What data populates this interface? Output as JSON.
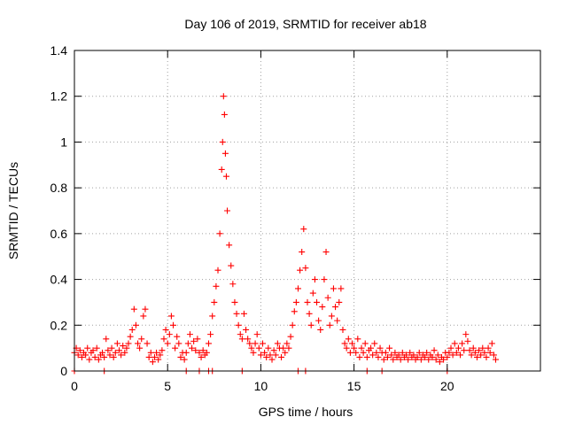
{
  "chart_data": {
    "type": "scatter",
    "title": "Day 106 of 2019, SRMTID for receiver ab18",
    "xlabel": "GPS time / hours",
    "ylabel": "SRMTID / TECUs",
    "xlim": [
      0,
      25
    ],
    "ylim": [
      0,
      1.4
    ],
    "xticks": [
      "0",
      "5",
      "10",
      "15",
      "20"
    ],
    "yticks": [
      "0",
      "0.2",
      "0.4",
      "0.6",
      "0.8",
      "1",
      "1.2",
      "1.4"
    ],
    "grid": true,
    "marker": "+",
    "colors": {
      "series": "#ff0000",
      "grid": "#a0a0a0",
      "axis": "#000000"
    },
    "series": [
      {
        "name": "SRMTID",
        "points": [
          [
            0.0,
            0.08
          ],
          [
            0.1,
            0.1
          ],
          [
            0.2,
            0.07
          ],
          [
            0.3,
            0.09
          ],
          [
            0.4,
            0.06
          ],
          [
            0.5,
            0.08
          ],
          [
            0.6,
            0.07
          ],
          [
            0.7,
            0.1
          ],
          [
            0.8,
            0.05
          ],
          [
            0.9,
            0.08
          ],
          [
            1.0,
            0.09
          ],
          [
            1.1,
            0.06
          ],
          [
            1.2,
            0.1
          ],
          [
            1.3,
            0.05
          ],
          [
            1.4,
            0.07
          ],
          [
            1.5,
            0.08
          ],
          [
            1.6,
            0.06
          ],
          [
            1.7,
            0.14
          ],
          [
            1.8,
            0.09
          ],
          [
            1.9,
            0.07
          ],
          [
            2.0,
            0.1
          ],
          [
            2.1,
            0.06
          ],
          [
            2.2,
            0.08
          ],
          [
            2.3,
            0.12
          ],
          [
            2.4,
            0.09
          ],
          [
            2.5,
            0.07
          ],
          [
            2.6,
            0.11
          ],
          [
            2.7,
            0.08
          ],
          [
            2.8,
            0.1
          ],
          [
            2.9,
            0.12
          ],
          [
            3.0,
            0.15
          ],
          [
            3.1,
            0.18
          ],
          [
            3.2,
            0.27
          ],
          [
            3.3,
            0.2
          ],
          [
            3.4,
            0.12
          ],
          [
            3.5,
            0.1
          ],
          [
            3.6,
            0.14
          ],
          [
            3.7,
            0.24
          ],
          [
            3.8,
            0.27
          ],
          [
            3.9,
            0.12
          ],
          [
            4.0,
            0.06
          ],
          [
            4.1,
            0.08
          ],
          [
            4.2,
            0.04
          ],
          [
            4.3,
            0.06
          ],
          [
            4.4,
            0.08
          ],
          [
            4.5,
            0.05
          ],
          [
            4.6,
            0.07
          ],
          [
            4.7,
            0.09
          ],
          [
            4.8,
            0.14
          ],
          [
            4.9,
            0.18
          ],
          [
            5.0,
            0.12
          ],
          [
            5.1,
            0.16
          ],
          [
            5.2,
            0.24
          ],
          [
            5.3,
            0.2
          ],
          [
            5.4,
            0.1
          ],
          [
            5.5,
            0.15
          ],
          [
            5.6,
            0.12
          ],
          [
            5.7,
            0.06
          ],
          [
            5.8,
            0.08
          ],
          [
            5.9,
            0.05
          ],
          [
            6.0,
            0.08
          ],
          [
            6.1,
            0.12
          ],
          [
            6.2,
            0.16
          ],
          [
            6.3,
            0.1
          ],
          [
            6.4,
            0.13
          ],
          [
            6.5,
            0.09
          ],
          [
            6.6,
            0.14
          ],
          [
            6.7,
            0.08
          ],
          [
            6.8,
            0.06
          ],
          [
            6.9,
            0.09
          ],
          [
            7.0,
            0.07
          ],
          [
            7.1,
            0.08
          ],
          [
            7.2,
            0.12
          ],
          [
            7.3,
            0.16
          ],
          [
            7.4,
            0.24
          ],
          [
            7.5,
            0.3
          ],
          [
            7.6,
            0.37
          ],
          [
            7.7,
            0.44
          ],
          [
            7.8,
            0.6
          ],
          [
            7.9,
            0.88
          ],
          [
            7.95,
            1.0
          ],
          [
            8.0,
            1.2
          ],
          [
            8.05,
            1.12
          ],
          [
            8.1,
            0.95
          ],
          [
            8.15,
            0.85
          ],
          [
            8.2,
            0.7
          ],
          [
            8.3,
            0.55
          ],
          [
            8.4,
            0.46
          ],
          [
            8.5,
            0.38
          ],
          [
            8.6,
            0.3
          ],
          [
            8.7,
            0.25
          ],
          [
            8.8,
            0.2
          ],
          [
            8.9,
            0.16
          ],
          [
            9.0,
            0.14
          ],
          [
            9.1,
            0.25
          ],
          [
            9.2,
            0.18
          ],
          [
            9.3,
            0.14
          ],
          [
            9.4,
            0.12
          ],
          [
            9.5,
            0.1
          ],
          [
            9.6,
            0.08
          ],
          [
            9.7,
            0.12
          ],
          [
            9.8,
            0.16
          ],
          [
            9.9,
            0.1
          ],
          [
            10.0,
            0.07
          ],
          [
            10.1,
            0.12
          ],
          [
            10.2,
            0.08
          ],
          [
            10.3,
            0.06
          ],
          [
            10.4,
            0.1
          ],
          [
            10.5,
            0.07
          ],
          [
            10.6,
            0.05
          ],
          [
            10.7,
            0.09
          ],
          [
            10.8,
            0.07
          ],
          [
            10.9,
            0.12
          ],
          [
            11.0,
            0.1
          ],
          [
            11.1,
            0.06
          ],
          [
            11.2,
            0.1
          ],
          [
            11.3,
            0.08
          ],
          [
            11.4,
            0.12
          ],
          [
            11.5,
            0.1
          ],
          [
            11.6,
            0.15
          ],
          [
            11.7,
            0.2
          ],
          [
            11.8,
            0.26
          ],
          [
            11.9,
            0.3
          ],
          [
            12.0,
            0.36
          ],
          [
            12.1,
            0.44
          ],
          [
            12.2,
            0.52
          ],
          [
            12.3,
            0.62
          ],
          [
            12.4,
            0.45
          ],
          [
            12.5,
            0.3
          ],
          [
            12.6,
            0.25
          ],
          [
            12.7,
            0.2
          ],
          [
            12.8,
            0.34
          ],
          [
            12.9,
            0.4
          ],
          [
            13.0,
            0.3
          ],
          [
            13.1,
            0.22
          ],
          [
            13.2,
            0.18
          ],
          [
            13.3,
            0.28
          ],
          [
            13.4,
            0.4
          ],
          [
            13.5,
            0.52
          ],
          [
            13.6,
            0.32
          ],
          [
            13.7,
            0.2
          ],
          [
            13.8,
            0.24
          ],
          [
            13.9,
            0.36
          ],
          [
            14.0,
            0.28
          ],
          [
            14.1,
            0.22
          ],
          [
            14.2,
            0.3
          ],
          [
            14.3,
            0.36
          ],
          [
            14.4,
            0.18
          ],
          [
            14.5,
            0.12
          ],
          [
            14.6,
            0.1
          ],
          [
            14.7,
            0.14
          ],
          [
            14.8,
            0.08
          ],
          [
            14.9,
            0.12
          ],
          [
            15.0,
            0.1
          ],
          [
            15.1,
            0.08
          ],
          [
            15.2,
            0.14
          ],
          [
            15.3,
            0.06
          ],
          [
            15.4,
            0.1
          ],
          [
            15.5,
            0.08
          ],
          [
            15.6,
            0.12
          ],
          [
            15.7,
            0.06
          ],
          [
            15.8,
            0.09
          ],
          [
            15.9,
            0.1
          ],
          [
            16.0,
            0.07
          ],
          [
            16.1,
            0.12
          ],
          [
            16.2,
            0.08
          ],
          [
            16.3,
            0.06
          ],
          [
            16.4,
            0.1
          ],
          [
            16.5,
            0.08
          ],
          [
            16.6,
            0.05
          ],
          [
            16.7,
            0.08
          ],
          [
            16.8,
            0.06
          ],
          [
            16.9,
            0.1
          ],
          [
            17.0,
            0.07
          ],
          [
            17.1,
            0.05
          ],
          [
            17.2,
            0.08
          ],
          [
            17.3,
            0.06
          ],
          [
            17.4,
            0.07
          ],
          [
            17.5,
            0.05
          ],
          [
            17.6,
            0.08
          ],
          [
            17.7,
            0.06
          ],
          [
            17.8,
            0.07
          ],
          [
            17.9,
            0.05
          ],
          [
            18.0,
            0.08
          ],
          [
            18.1,
            0.06
          ],
          [
            18.2,
            0.07
          ],
          [
            18.3,
            0.05
          ],
          [
            18.4,
            0.06
          ],
          [
            18.5,
            0.08
          ],
          [
            18.6,
            0.05
          ],
          [
            18.7,
            0.07
          ],
          [
            18.8,
            0.06
          ],
          [
            18.9,
            0.08
          ],
          [
            19.0,
            0.05
          ],
          [
            19.1,
            0.07
          ],
          [
            19.2,
            0.06
          ],
          [
            19.3,
            0.09
          ],
          [
            19.4,
            0.05
          ],
          [
            19.5,
            0.07
          ],
          [
            19.6,
            0.04
          ],
          [
            19.7,
            0.06
          ],
          [
            19.8,
            0.05
          ],
          [
            19.9,
            0.08
          ],
          [
            20.0,
            0.06
          ],
          [
            20.1,
            0.08
          ],
          [
            20.2,
            0.1
          ],
          [
            20.3,
            0.07
          ],
          [
            20.4,
            0.12
          ],
          [
            20.5,
            0.08
          ],
          [
            20.6,
            0.1
          ],
          [
            20.7,
            0.07
          ],
          [
            20.8,
            0.12
          ],
          [
            20.9,
            0.09
          ],
          [
            21.0,
            0.16
          ],
          [
            21.1,
            0.13
          ],
          [
            21.2,
            0.09
          ],
          [
            21.3,
            0.07
          ],
          [
            21.4,
            0.1
          ],
          [
            21.5,
            0.08
          ],
          [
            21.6,
            0.06
          ],
          [
            21.7,
            0.09
          ],
          [
            21.8,
            0.07
          ],
          [
            21.9,
            0.1
          ],
          [
            22.0,
            0.08
          ],
          [
            22.1,
            0.06
          ],
          [
            22.2,
            0.1
          ],
          [
            22.3,
            0.08
          ],
          [
            22.4,
            0.12
          ],
          [
            22.5,
            0.07
          ],
          [
            22.6,
            0.05
          ]
        ],
        "zero_points": [
          [
            0.0,
            0.0
          ],
          [
            1.6,
            0.0
          ],
          [
            6.0,
            0.0
          ],
          [
            6.7,
            0.0
          ],
          [
            7.2,
            0.0
          ],
          [
            7.4,
            0.0
          ],
          [
            9.0,
            0.0
          ],
          [
            12.0,
            0.0
          ],
          [
            12.4,
            0.0
          ],
          [
            15.7,
            0.0
          ],
          [
            16.5,
            0.0
          ],
          [
            20.0,
            0.0
          ]
        ]
      }
    ]
  }
}
